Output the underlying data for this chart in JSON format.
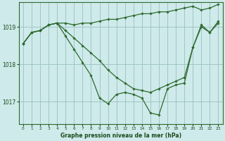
{
  "title": "Graphe pression niveau de la mer (hPa)",
  "background_color": "#ceeaea",
  "plot_bg_color": "#ceeaea",
  "line_color": "#2d6a2d",
  "grid_color": "#9bbfbf",
  "text_color": "#1a4a1a",
  "ylim": [
    1016.4,
    1019.65
  ],
  "xlim": [
    -0.5,
    23.5
  ],
  "yticks": [
    1017,
    1018,
    1019
  ],
  "xticks": [
    0,
    1,
    2,
    3,
    4,
    5,
    6,
    7,
    8,
    9,
    10,
    11,
    12,
    13,
    14,
    15,
    16,
    17,
    18,
    19,
    20,
    21,
    22,
    23
  ],
  "series": [
    [
      1018.55,
      1018.85,
      1018.9,
      1019.05,
      1019.1,
      1019.1,
      1019.05,
      1019.1,
      1019.1,
      1019.15,
      1019.2,
      1019.2,
      1019.25,
      1019.3,
      1019.35,
      1019.35,
      1019.4,
      1019.4,
      1019.45,
      1019.5,
      1019.55,
      1019.45,
      1019.5,
      1019.6
    ],
    [
      1018.55,
      1018.85,
      1018.9,
      1019.05,
      1019.1,
      1018.9,
      1018.7,
      1018.5,
      1018.3,
      1018.1,
      1017.85,
      1017.65,
      1017.5,
      1017.35,
      1017.3,
      1017.25,
      1017.35,
      1017.45,
      1017.55,
      1017.65,
      1018.45,
      1019.0,
      1018.85,
      1019.1
    ],
    [
      1018.55,
      1018.85,
      1018.9,
      1019.05,
      1019.1,
      1018.75,
      1018.4,
      1018.05,
      1017.7,
      1017.1,
      1016.95,
      1017.2,
      1017.25,
      1017.2,
      1017.1,
      1016.7,
      1016.65,
      1017.35,
      1017.45,
      1017.5,
      1018.45,
      1019.05,
      1018.85,
      1019.15
    ]
  ]
}
